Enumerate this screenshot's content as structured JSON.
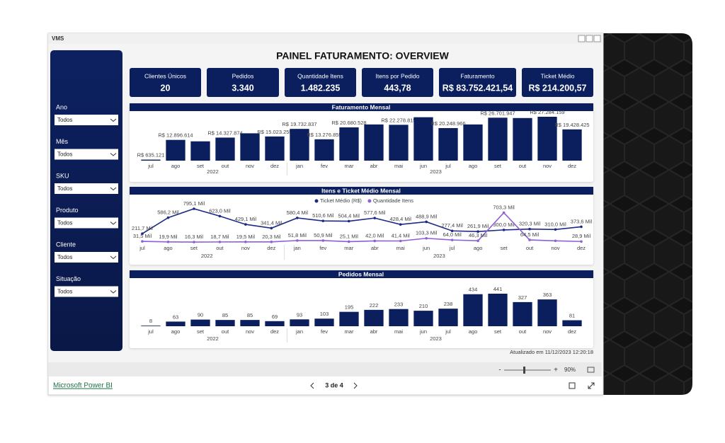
{
  "window": {
    "title": "VMS"
  },
  "report": {
    "title": "PAINEL FATURAMENTO: OVERVIEW",
    "kpis": [
      {
        "label": "Clientes Únicos",
        "value": "20"
      },
      {
        "label": "Pedidos",
        "value": "3.340"
      },
      {
        "label": "Quantidade Itens",
        "value": "1.482.235"
      },
      {
        "label": "Itens por Pedido",
        "value": "443,78"
      },
      {
        "label": "Faturamento",
        "value": "R$ 83.752.421,54"
      },
      {
        "label": "Ticket Médio",
        "value": "R$ 214.200,57"
      }
    ],
    "filters": [
      {
        "label": "Ano",
        "value": "Todos"
      },
      {
        "label": "Mês",
        "value": "Todos"
      },
      {
        "label": "SKU",
        "value": "Todos"
      },
      {
        "label": "Produto",
        "value": "Todos"
      },
      {
        "label": "Cliente",
        "value": "Todos"
      },
      {
        "label": "Situação",
        "value": "Todos"
      }
    ],
    "updated": "Atualizado em 11/12/2023 12:20:18"
  },
  "chart_data": [
    {
      "type": "bar",
      "title": "Faturamento Mensal",
      "categories": [
        "jul",
        "ago",
        "set",
        "out",
        "nov",
        "dez",
        "jan",
        "fev",
        "mar",
        "abr",
        "mai",
        "jun",
        "jul",
        "ago",
        "set",
        "out",
        "nov",
        "dez"
      ],
      "category_years": [
        "2022",
        "2022",
        "2022",
        "2022",
        "2022",
        "2022",
        "2023",
        "2023",
        "2023",
        "2023",
        "2023",
        "2023",
        "2023",
        "2023",
        "2023",
        "2023",
        "2023",
        "2023"
      ],
      "values": [
        635121,
        12896614,
        12000000,
        14327874,
        17000000,
        15023255,
        19732837,
        13276855,
        20680528,
        22500000,
        22278815,
        27000000,
        20248966,
        22500000,
        26701947,
        26500000,
        27284159,
        19428425
      ],
      "value_labels": [
        "R$ 635.121",
        "R$ 12.896.614",
        null,
        "R$ 14.327.874",
        null,
        "R$ 15.023.255",
        "R$ 19.732.837",
        "R$ 13.276.855",
        "R$ 20.680.528",
        null,
        "R$ 22.278.815",
        null,
        "R$ 20.248.966",
        null,
        "R$ 26.701.947",
        null,
        "R$ 27.284.159",
        "R$ 19.428.425"
      ],
      "color": "#0b1f5e"
    },
    {
      "type": "line",
      "title": "Itens e Ticket Médio Mensal",
      "categories": [
        "jul",
        "ago",
        "set",
        "out",
        "nov",
        "dez",
        "jan",
        "fev",
        "mar",
        "abr",
        "mai",
        "jun",
        "jul",
        "ago",
        "set",
        "out",
        "nov",
        "dez"
      ],
      "category_years": [
        "2022",
        "2022",
        "2022",
        "2022",
        "2022",
        "2022",
        "2023",
        "2023",
        "2023",
        "2023",
        "2023",
        "2023",
        "2023",
        "2023",
        "2023",
        "2023",
        "2023",
        "2023"
      ],
      "series": [
        {
          "name": "Ticket Médio (R$)",
          "color": "#1c2a86",
          "values": [
            211700,
            586200,
            795100,
            623000,
            429100,
            341400,
            580400,
            510600,
            504400,
            577600,
            428400,
            488900,
            277400,
            261900,
            300000,
            320300,
            310000,
            373600
          ],
          "value_labels": [
            "211,7 Mil",
            "586,2 Mil",
            "795,1 Mil",
            "623,0 Mil",
            "429,1 Mil",
            "341,4 Mil",
            "580,4 Mil",
            "510,6 Mil",
            "504,4 Mil",
            "577,6 Mil",
            "428,4 Mil",
            "488,9 Mil",
            "277,4 Mil",
            "261,9 Mil",
            "300,0 Mil",
            "320,3 Mil",
            "310,0 Mil",
            "373,6 Mil"
          ]
        },
        {
          "name": "Quantidade Itens",
          "color": "#8e5fd8",
          "values": [
            31500,
            19900,
            16300,
            18700,
            19500,
            20300,
            51800,
            50900,
            25100,
            42000,
            41400,
            103300,
            64000,
            46300,
            703300,
            64500,
            45000,
            28900
          ],
          "value_labels": [
            "31,5 Mil",
            "19,9 Mil",
            "16,3 Mil",
            "18,7 Mil",
            "19,5 Mil",
            "20,3 Mil",
            "51,8 Mil",
            "50,9 Mil",
            "25,1 Mil",
            "42,0 Mil",
            "41,4 Mil",
            "103,3 Mil",
            "64,0 Mil",
            "46,3 Mil",
            "703,3 Mil",
            "64,5 Mil",
            null,
            "28,9 Mil"
          ]
        }
      ]
    },
    {
      "type": "bar",
      "title": "Pedidos Mensal",
      "categories": [
        "jul",
        "ago",
        "set",
        "out",
        "nov",
        "dez",
        "jan",
        "fev",
        "mar",
        "abr",
        "mai",
        "jun",
        "jul",
        "ago",
        "set",
        "out",
        "nov",
        "dez"
      ],
      "category_years": [
        "2022",
        "2022",
        "2022",
        "2022",
        "2022",
        "2022",
        "2023",
        "2023",
        "2023",
        "2023",
        "2023",
        "2023",
        "2023",
        "2023",
        "2023",
        "2023",
        "2023",
        "2023"
      ],
      "values": [
        8,
        63,
        90,
        85,
        85,
        69,
        93,
        103,
        195,
        222,
        233,
        210,
        238,
        434,
        441,
        327,
        363,
        81
      ],
      "color": "#0b1f5e"
    }
  ],
  "zoom": {
    "minus": "-",
    "plus": "+",
    "level": "90%"
  },
  "footer": {
    "brand": "Microsoft Power BI",
    "page": "3 de 4"
  }
}
